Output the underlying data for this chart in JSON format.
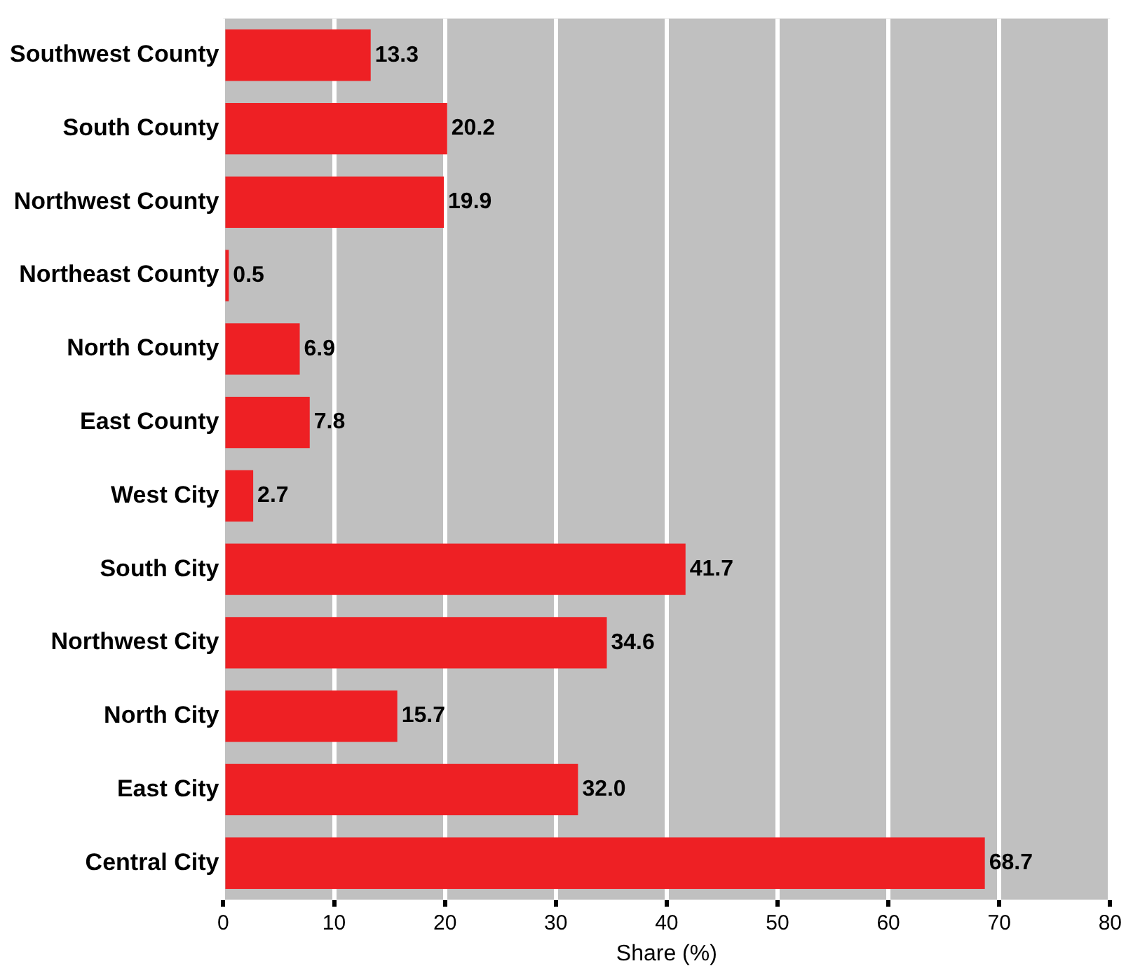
{
  "chart_data": {
    "type": "bar",
    "orientation": "horizontal",
    "xlabel": "Share (%)",
    "categories": [
      "Southwest County",
      "South County",
      "Northwest County",
      "Northeast County",
      "North County",
      "East County",
      "West City",
      "South City",
      "Northwest City",
      "North City",
      "East City",
      "Central City"
    ],
    "values": [
      13.3,
      20.2,
      19.9,
      0.5,
      6.9,
      7.8,
      2.7,
      41.7,
      34.6,
      15.7,
      32.0,
      68.7
    ],
    "value_labels": [
      "13.3",
      "20.2",
      "19.9",
      "0.5",
      "6.9",
      "7.8",
      "2.7",
      "41.7",
      "34.6",
      "15.7",
      "32.0",
      "68.7"
    ],
    "color": "#ee2024",
    "xlim": [
      0,
      80
    ],
    "xticks": [
      0,
      10,
      20,
      30,
      40,
      50,
      60,
      70,
      80
    ],
    "grid": "x",
    "legend": false
  }
}
